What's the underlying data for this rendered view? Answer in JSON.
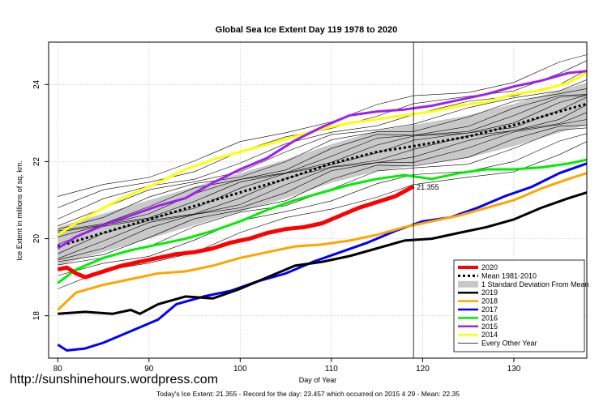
{
  "chart_data": {
    "type": "line",
    "title": "Global Sea Ice Extent Day 119 1978 to 2020",
    "xlabel": "Day of Year",
    "ylabel": "Ice Extent in millions of sq. km.",
    "xlim": [
      79,
      138
    ],
    "ylim": [
      16.9,
      25.1
    ],
    "x_ticks": [
      80,
      90,
      100,
      110,
      120,
      130
    ],
    "y_ticks": [
      18,
      20,
      22,
      24
    ],
    "grid": true,
    "vline_x": 119,
    "current_value_label": "21.355",
    "legend_position": "bottom-right",
    "legend": [
      {
        "label": "2020",
        "color": "#ff0000",
        "style": "thick"
      },
      {
        "label": "Mean 1981-2010",
        "color": "#000000",
        "style": "dotted"
      },
      {
        "label": "1 Standard Deviation From Mean",
        "color": "#c8c8c8",
        "style": "band"
      },
      {
        "label": "2019",
        "color": "#000000",
        "style": "solid"
      },
      {
        "label": "2018",
        "color": "#ffa500",
        "style": "solid"
      },
      {
        "label": "2017",
        "color": "#0000ff",
        "style": "solid"
      },
      {
        "label": "2016",
        "color": "#00ee00",
        "style": "solid"
      },
      {
        "label": "2015",
        "color": "#a020f0",
        "style": "solid"
      },
      {
        "label": "2014",
        "color": "#ffff00",
        "style": "solid"
      },
      {
        "label": "Every Other Year",
        "color": "#000000",
        "style": "thin"
      }
    ],
    "mean_series": {
      "x": [
        80,
        85,
        90,
        95,
        100,
        105,
        110,
        115,
        119,
        125,
        130,
        135,
        138
      ],
      "values": [
        19.8,
        20.15,
        20.5,
        20.85,
        21.2,
        21.55,
        21.95,
        22.25,
        22.4,
        22.65,
        22.95,
        23.3,
        23.5
      ]
    },
    "std_dev_band": {
      "x": [
        80,
        85,
        90,
        95,
        100,
        105,
        110,
        115,
        119,
        125,
        130,
        135,
        138
      ],
      "upper": [
        20.3,
        20.65,
        21.0,
        21.35,
        21.7,
        22.05,
        22.45,
        22.8,
        22.95,
        23.2,
        23.5,
        23.85,
        24.05
      ],
      "lower": [
        19.3,
        19.65,
        20.0,
        20.35,
        20.7,
        21.05,
        21.45,
        21.75,
        21.9,
        22.1,
        22.4,
        22.75,
        22.95
      ]
    },
    "series": [
      {
        "name": "2020",
        "color": "#ff0000",
        "x": [
          80,
          81,
          82,
          83,
          85,
          87,
          89,
          91,
          93,
          95,
          97,
          99,
          101,
          103,
          105,
          107,
          109,
          111,
          113,
          115,
          117,
          119
        ],
        "values": [
          19.2,
          19.25,
          19.1,
          19.0,
          19.15,
          19.3,
          19.4,
          19.5,
          19.6,
          19.65,
          19.75,
          19.9,
          20.0,
          20.15,
          20.25,
          20.3,
          20.4,
          20.6,
          20.8,
          20.95,
          21.1,
          21.355
        ]
      },
      {
        "name": "2019",
        "color": "#000000",
        "x": [
          80,
          83,
          86,
          88,
          89,
          91,
          94,
          97,
          100,
          103,
          106,
          109,
          112,
          115,
          118,
          121,
          124,
          127,
          130,
          133,
          136,
          138
        ],
        "values": [
          18.05,
          18.1,
          18.05,
          18.15,
          18.05,
          18.3,
          18.5,
          18.45,
          18.7,
          19.0,
          19.3,
          19.4,
          19.55,
          19.75,
          19.95,
          20.0,
          20.15,
          20.3,
          20.5,
          20.8,
          21.05,
          21.2
        ]
      },
      {
        "name": "2018",
        "color": "#ffa500",
        "x": [
          80,
          82,
          85,
          88,
          91,
          94,
          97,
          100,
          103,
          106,
          109,
          112,
          115,
          118,
          121,
          124,
          127,
          130,
          133,
          136,
          138
        ],
        "values": [
          18.15,
          18.6,
          18.8,
          18.95,
          19.1,
          19.15,
          19.3,
          19.5,
          19.65,
          19.8,
          19.85,
          19.95,
          20.1,
          20.3,
          20.45,
          20.6,
          20.8,
          21.0,
          21.3,
          21.55,
          21.7
        ]
      },
      {
        "name": "2017",
        "color": "#0000ff",
        "x": [
          80,
          81,
          83,
          85,
          88,
          91,
          93,
          96,
          99,
          102,
          105,
          108,
          111,
          114,
          117,
          120,
          123,
          126,
          129,
          132,
          135,
          138
        ],
        "values": [
          17.25,
          17.1,
          17.15,
          17.3,
          17.6,
          17.9,
          18.3,
          18.5,
          18.65,
          18.9,
          19.1,
          19.4,
          19.65,
          19.9,
          20.2,
          20.45,
          20.55,
          20.8,
          21.1,
          21.35,
          21.7,
          21.95
        ]
      },
      {
        "name": "2016",
        "color": "#00ee00",
        "x": [
          80,
          82,
          85,
          88,
          91,
          94,
          97,
          100,
          103,
          106,
          109,
          112,
          115,
          118,
          121,
          124,
          127,
          130,
          133,
          136,
          138
        ],
        "values": [
          18.85,
          19.2,
          19.5,
          19.7,
          19.85,
          20.0,
          20.2,
          20.45,
          20.75,
          21.0,
          21.2,
          21.4,
          21.55,
          21.65,
          21.55,
          21.7,
          21.8,
          21.8,
          21.85,
          21.95,
          22.05
        ]
      },
      {
        "name": "2015",
        "color": "#a020f0",
        "x": [
          80,
          82,
          85,
          88,
          91,
          94,
          97,
          100,
          103,
          106,
          109,
          112,
          115,
          118,
          121,
          124,
          127,
          130,
          133,
          136,
          138
        ],
        "values": [
          19.75,
          20.05,
          20.35,
          20.6,
          20.85,
          21.05,
          21.45,
          21.8,
          22.1,
          22.55,
          22.9,
          23.2,
          23.3,
          23.35,
          23.45,
          23.6,
          23.75,
          23.95,
          24.1,
          24.3,
          24.35
        ]
      },
      {
        "name": "2014",
        "color": "#ffff00",
        "x": [
          80,
          82,
          85,
          88,
          91,
          94,
          97,
          100,
          103,
          106,
          109,
          112,
          115,
          118,
          121,
          124,
          127,
          130,
          133,
          136,
          138
        ],
        "values": [
          20.1,
          20.4,
          20.8,
          21.15,
          21.45,
          21.8,
          22.05,
          22.25,
          22.45,
          22.65,
          22.85,
          23.0,
          23.1,
          23.2,
          23.3,
          23.45,
          23.55,
          23.75,
          23.85,
          24.05,
          24.3
        ]
      }
    ]
  },
  "watermark": "http://sunshinehours.wordpress.com",
  "footer": "Today's Ice Extent: 21.355  - Record for the day: 23.457 which occurred on 2015 4 29  - Mean: 22.35"
}
